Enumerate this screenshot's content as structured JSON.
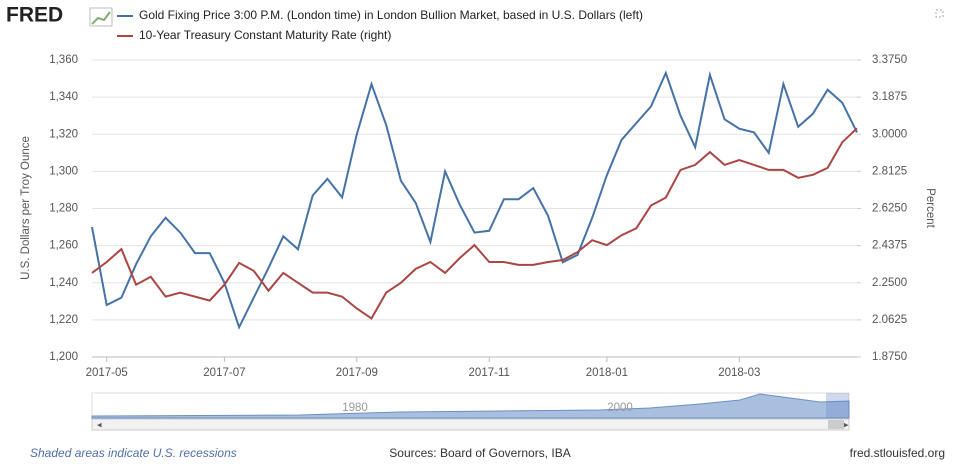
{
  "brand": "FRED",
  "chart_data": {
    "type": "line",
    "categories": [
      null,
      "2017-05",
      null,
      null,
      null,
      null,
      null,
      null,
      null,
      "2017-07",
      null,
      null,
      null,
      null,
      null,
      null,
      null,
      null,
      "2017-09",
      null,
      null,
      null,
      null,
      null,
      null,
      null,
      null,
      "2017-11",
      null,
      null,
      null,
      null,
      null,
      null,
      null,
      "2018-01",
      null,
      null,
      null,
      null,
      null,
      null,
      null,
      null,
      "2018-03",
      null,
      null,
      null,
      null,
      null,
      null,
      null,
      null
    ],
    "series": [
      {
        "name": "Gold Fixing Price 3:00 P.M. (London time) in London Bullion Market, based in U.S. Dollars (left)",
        "color": "#4572a7",
        "axis": "y",
        "values": [
          1270,
          1228,
          1232,
          1250,
          1265,
          1275,
          1267,
          1256,
          1256,
          1240,
          1216,
          1232,
          1248,
          1265,
          1258,
          1287,
          1296,
          1286,
          1320,
          1347,
          1325,
          1295,
          1283,
          1262,
          1300,
          1282,
          1267,
          1268,
          1285,
          1285,
          1291,
          1276,
          1251,
          1255,
          1275,
          1298,
          1317,
          1326,
          1335,
          1353,
          1330,
          1313,
          1352,
          1328,
          1323,
          1321,
          1310,
          1347,
          1324,
          1331,
          1344,
          1337,
          1321
        ]
      },
      {
        "name": "10-Year Treasury Constant Maturity Rate (right)",
        "color": "#aa4643",
        "axis": "y2",
        "values": [
          2.3,
          2.355,
          2.42,
          2.24,
          2.28,
          2.18,
          2.2,
          2.18,
          2.16,
          2.24,
          2.35,
          2.31,
          2.21,
          2.3,
          2.25,
          2.2,
          2.2,
          2.18,
          2.12,
          2.07,
          2.2,
          2.25,
          2.32,
          2.355,
          2.3,
          2.375,
          2.44,
          2.355,
          2.355,
          2.34,
          2.34,
          2.355,
          2.365,
          2.405,
          2.465,
          2.44,
          2.49,
          2.525,
          2.64,
          2.68,
          2.82,
          2.845,
          2.91,
          2.845,
          2.87,
          2.845,
          2.82,
          2.82,
          2.78,
          2.795,
          2.83,
          2.96,
          3.03
        ]
      }
    ],
    "ylabel": "U.S. Dollars per Troy Ounce",
    "y2label": "Percent",
    "ylim": [
      1200,
      1360
    ],
    "yticks": [
      {
        "value": 1200,
        "label": "1,200"
      },
      {
        "value": 1220,
        "label": "1,220"
      },
      {
        "value": 1240,
        "label": "1,240"
      },
      {
        "value": 1260,
        "label": "1,260"
      },
      {
        "value": 1280,
        "label": "1,280"
      },
      {
        "value": 1300,
        "label": "1,300"
      },
      {
        "value": 1320,
        "label": "1,320"
      },
      {
        "value": 1340,
        "label": "1,340"
      },
      {
        "value": 1360,
        "label": "1,360"
      }
    ],
    "y2lim": [
      1.875,
      3.375
    ],
    "y2ticks": [
      {
        "value": 1.875,
        "label": "1.8750"
      },
      {
        "value": 2.0625,
        "label": "2.0625"
      },
      {
        "value": 2.25,
        "label": "2.2500"
      },
      {
        "value": 2.4375,
        "label": "2.4375"
      },
      {
        "value": 2.625,
        "label": "2.6250"
      },
      {
        "value": 2.8125,
        "label": "2.8125"
      },
      {
        "value": 3,
        "label": "3.0000"
      },
      {
        "value": 3.1875,
        "label": "3.1875"
      },
      {
        "value": 3.375,
        "label": "3.3750"
      }
    ],
    "grid": true
  },
  "navigator": {
    "labels": [
      "1980",
      "2000"
    ]
  },
  "footer": {
    "recessions": "Shaded areas indicate U.S. recessions",
    "sources": "Sources: Board of Governors, IBA",
    "site": "fred.stlouisfed.org"
  }
}
